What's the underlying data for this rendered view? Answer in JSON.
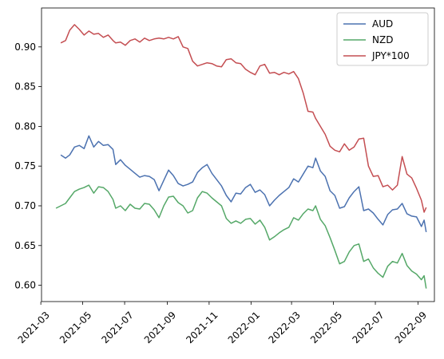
{
  "chart_data": {
    "type": "line",
    "title": "",
    "xlabel": "",
    "ylabel": "",
    "x_range": [
      "2021-03-02",
      "2022-09-25"
    ],
    "ylim": [
      0.5795,
      0.949
    ],
    "grid": false,
    "legend_position": "top-right",
    "x_ticks": [
      {
        "date": "2021-03-01",
        "label": "2021-03"
      },
      {
        "date": "2021-05-01",
        "label": "2021-05"
      },
      {
        "date": "2021-07-01",
        "label": "2021-07"
      },
      {
        "date": "2021-09-01",
        "label": "2021-09"
      },
      {
        "date": "2021-11-01",
        "label": "2021-11"
      },
      {
        "date": "2022-01-01",
        "label": "2022-01"
      },
      {
        "date": "2022-03-01",
        "label": "2022-03"
      },
      {
        "date": "2022-05-01",
        "label": "2022-05"
      },
      {
        "date": "2022-07-01",
        "label": "2022-07"
      },
      {
        "date": "2022-09-01",
        "label": "2022-09"
      }
    ],
    "y_ticks": [
      {
        "value": 0.6,
        "label": "0.60"
      },
      {
        "value": 0.65,
        "label": "0.65"
      },
      {
        "value": 0.7,
        "label": "0.70"
      },
      {
        "value": 0.75,
        "label": "0.75"
      },
      {
        "value": 0.8,
        "label": "0.80"
      },
      {
        "value": 0.85,
        "label": "0.85"
      },
      {
        "value": 0.9,
        "label": "0.90"
      }
    ],
    "series": [
      {
        "name": "AUD",
        "color": "#4c72b0",
        "points": [
          [
            "2021-03-30",
            0.764
          ],
          [
            "2021-04-06",
            0.76
          ],
          [
            "2021-04-12",
            0.764
          ],
          [
            "2021-04-19",
            0.774
          ],
          [
            "2021-04-26",
            0.776
          ],
          [
            "2021-05-03",
            0.772
          ],
          [
            "2021-05-10",
            0.788
          ],
          [
            "2021-05-17",
            0.774
          ],
          [
            "2021-05-24",
            0.781
          ],
          [
            "2021-05-31",
            0.776
          ],
          [
            "2021-06-07",
            0.777
          ],
          [
            "2021-06-14",
            0.771
          ],
          [
            "2021-06-18",
            0.752
          ],
          [
            "2021-06-25",
            0.758
          ],
          [
            "2021-07-02",
            0.751
          ],
          [
            "2021-07-09",
            0.746
          ],
          [
            "2021-07-16",
            0.741
          ],
          [
            "2021-07-23",
            0.736
          ],
          [
            "2021-07-30",
            0.738
          ],
          [
            "2021-08-06",
            0.737
          ],
          [
            "2021-08-13",
            0.733
          ],
          [
            "2021-08-20",
            0.719
          ],
          [
            "2021-08-27",
            0.732
          ],
          [
            "2021-09-03",
            0.745
          ],
          [
            "2021-09-10",
            0.738
          ],
          [
            "2021-09-17",
            0.728
          ],
          [
            "2021-09-24",
            0.725
          ],
          [
            "2021-10-01",
            0.727
          ],
          [
            "2021-10-08",
            0.73
          ],
          [
            "2021-10-15",
            0.742
          ],
          [
            "2021-10-22",
            0.748
          ],
          [
            "2021-10-29",
            0.752
          ],
          [
            "2021-11-05",
            0.741
          ],
          [
            "2021-11-12",
            0.733
          ],
          [
            "2021-11-19",
            0.725
          ],
          [
            "2021-11-26",
            0.713
          ],
          [
            "2021-12-03",
            0.705
          ],
          [
            "2021-12-10",
            0.716
          ],
          [
            "2021-12-17",
            0.715
          ],
          [
            "2021-12-24",
            0.723
          ],
          [
            "2021-12-31",
            0.727
          ],
          [
            "2022-01-07",
            0.717
          ],
          [
            "2022-01-14",
            0.72
          ],
          [
            "2022-01-21",
            0.714
          ],
          [
            "2022-01-28",
            0.7
          ],
          [
            "2022-02-04",
            0.707
          ],
          [
            "2022-02-11",
            0.713
          ],
          [
            "2022-02-18",
            0.718
          ],
          [
            "2022-02-25",
            0.723
          ],
          [
            "2022-03-04",
            0.734
          ],
          [
            "2022-03-11",
            0.73
          ],
          [
            "2022-03-18",
            0.74
          ],
          [
            "2022-03-25",
            0.75
          ],
          [
            "2022-04-01",
            0.748
          ],
          [
            "2022-04-05",
            0.76
          ],
          [
            "2022-04-12",
            0.744
          ],
          [
            "2022-04-19",
            0.737
          ],
          [
            "2022-04-26",
            0.719
          ],
          [
            "2022-05-03",
            0.713
          ],
          [
            "2022-05-10",
            0.697
          ],
          [
            "2022-05-17",
            0.699
          ],
          [
            "2022-05-24",
            0.71
          ],
          [
            "2022-05-31",
            0.718
          ],
          [
            "2022-06-07",
            0.724
          ],
          [
            "2022-06-14",
            0.694
          ],
          [
            "2022-06-21",
            0.696
          ],
          [
            "2022-06-28",
            0.691
          ],
          [
            "2022-07-05",
            0.683
          ],
          [
            "2022-07-12",
            0.676
          ],
          [
            "2022-07-19",
            0.689
          ],
          [
            "2022-07-26",
            0.695
          ],
          [
            "2022-08-02",
            0.696
          ],
          [
            "2022-08-09",
            0.703
          ],
          [
            "2022-08-16",
            0.69
          ],
          [
            "2022-08-23",
            0.687
          ],
          [
            "2022-08-30",
            0.686
          ],
          [
            "2022-09-06",
            0.674
          ],
          [
            "2022-09-10",
            0.682
          ],
          [
            "2022-09-13",
            0.667
          ]
        ]
      },
      {
        "name": "NZD",
        "color": "#55a868",
        "points": [
          [
            "2021-03-23",
            0.697
          ],
          [
            "2021-03-30",
            0.7
          ],
          [
            "2021-04-06",
            0.703
          ],
          [
            "2021-04-12",
            0.71
          ],
          [
            "2021-04-19",
            0.718
          ],
          [
            "2021-04-26",
            0.721
          ],
          [
            "2021-05-03",
            0.723
          ],
          [
            "2021-05-10",
            0.726
          ],
          [
            "2021-05-17",
            0.716
          ],
          [
            "2021-05-24",
            0.724
          ],
          [
            "2021-05-31",
            0.723
          ],
          [
            "2021-06-07",
            0.718
          ],
          [
            "2021-06-14",
            0.708
          ],
          [
            "2021-06-18",
            0.697
          ],
          [
            "2021-06-25",
            0.7
          ],
          [
            "2021-07-02",
            0.694
          ],
          [
            "2021-07-09",
            0.702
          ],
          [
            "2021-07-16",
            0.697
          ],
          [
            "2021-07-23",
            0.696
          ],
          [
            "2021-07-30",
            0.703
          ],
          [
            "2021-08-06",
            0.702
          ],
          [
            "2021-08-13",
            0.695
          ],
          [
            "2021-08-20",
            0.685
          ],
          [
            "2021-08-27",
            0.7
          ],
          [
            "2021-09-03",
            0.711
          ],
          [
            "2021-09-10",
            0.712
          ],
          [
            "2021-09-17",
            0.704
          ],
          [
            "2021-09-24",
            0.7
          ],
          [
            "2021-10-01",
            0.691
          ],
          [
            "2021-10-08",
            0.694
          ],
          [
            "2021-10-15",
            0.71
          ],
          [
            "2021-10-22",
            0.718
          ],
          [
            "2021-10-29",
            0.716
          ],
          [
            "2021-11-05",
            0.71
          ],
          [
            "2021-11-12",
            0.705
          ],
          [
            "2021-11-19",
            0.7
          ],
          [
            "2021-11-26",
            0.684
          ],
          [
            "2021-12-03",
            0.678
          ],
          [
            "2021-12-10",
            0.681
          ],
          [
            "2021-12-17",
            0.678
          ],
          [
            "2021-12-24",
            0.683
          ],
          [
            "2021-12-31",
            0.684
          ],
          [
            "2022-01-07",
            0.677
          ],
          [
            "2022-01-14",
            0.682
          ],
          [
            "2022-01-21",
            0.673
          ],
          [
            "2022-01-28",
            0.657
          ],
          [
            "2022-02-04",
            0.661
          ],
          [
            "2022-02-11",
            0.666
          ],
          [
            "2022-02-18",
            0.67
          ],
          [
            "2022-02-25",
            0.673
          ],
          [
            "2022-03-04",
            0.685
          ],
          [
            "2022-03-11",
            0.682
          ],
          [
            "2022-03-18",
            0.69
          ],
          [
            "2022-03-25",
            0.696
          ],
          [
            "2022-04-01",
            0.694
          ],
          [
            "2022-04-05",
            0.7
          ],
          [
            "2022-04-12",
            0.683
          ],
          [
            "2022-04-19",
            0.675
          ],
          [
            "2022-04-26",
            0.66
          ],
          [
            "2022-05-03",
            0.644
          ],
          [
            "2022-05-10",
            0.627
          ],
          [
            "2022-05-17",
            0.63
          ],
          [
            "2022-05-24",
            0.642
          ],
          [
            "2022-05-31",
            0.65
          ],
          [
            "2022-06-07",
            0.652
          ],
          [
            "2022-06-14",
            0.63
          ],
          [
            "2022-06-21",
            0.633
          ],
          [
            "2022-06-28",
            0.622
          ],
          [
            "2022-07-05",
            0.615
          ],
          [
            "2022-07-12",
            0.61
          ],
          [
            "2022-07-19",
            0.624
          ],
          [
            "2022-07-26",
            0.63
          ],
          [
            "2022-08-02",
            0.628
          ],
          [
            "2022-08-09",
            0.64
          ],
          [
            "2022-08-16",
            0.625
          ],
          [
            "2022-08-23",
            0.618
          ],
          [
            "2022-08-30",
            0.614
          ],
          [
            "2022-09-06",
            0.607
          ],
          [
            "2022-09-10",
            0.612
          ],
          [
            "2022-09-13",
            0.596
          ]
        ]
      },
      {
        "name": "JPY*100",
        "color": "#c44e52",
        "points": [
          [
            "2021-03-30",
            0.905
          ],
          [
            "2021-04-06",
            0.908
          ],
          [
            "2021-04-12",
            0.921
          ],
          [
            "2021-04-19",
            0.928
          ],
          [
            "2021-04-26",
            0.922
          ],
          [
            "2021-05-03",
            0.915
          ],
          [
            "2021-05-10",
            0.92
          ],
          [
            "2021-05-17",
            0.916
          ],
          [
            "2021-05-24",
            0.917
          ],
          [
            "2021-05-31",
            0.912
          ],
          [
            "2021-06-07",
            0.915
          ],
          [
            "2021-06-14",
            0.908
          ],
          [
            "2021-06-18",
            0.905
          ],
          [
            "2021-06-25",
            0.906
          ],
          [
            "2021-07-02",
            0.902
          ],
          [
            "2021-07-09",
            0.908
          ],
          [
            "2021-07-16",
            0.91
          ],
          [
            "2021-07-23",
            0.906
          ],
          [
            "2021-07-30",
            0.911
          ],
          [
            "2021-08-06",
            0.908
          ],
          [
            "2021-08-13",
            0.91
          ],
          [
            "2021-08-20",
            0.911
          ],
          [
            "2021-08-27",
            0.91
          ],
          [
            "2021-09-03",
            0.912
          ],
          [
            "2021-09-10",
            0.91
          ],
          [
            "2021-09-17",
            0.913
          ],
          [
            "2021-09-24",
            0.9
          ],
          [
            "2021-10-01",
            0.898
          ],
          [
            "2021-10-08",
            0.882
          ],
          [
            "2021-10-15",
            0.876
          ],
          [
            "2021-10-22",
            0.878
          ],
          [
            "2021-10-29",
            0.88
          ],
          [
            "2021-11-05",
            0.879
          ],
          [
            "2021-11-12",
            0.876
          ],
          [
            "2021-11-19",
            0.875
          ],
          [
            "2021-11-26",
            0.884
          ],
          [
            "2021-12-03",
            0.885
          ],
          [
            "2021-12-10",
            0.88
          ],
          [
            "2021-12-17",
            0.879
          ],
          [
            "2021-12-24",
            0.872
          ],
          [
            "2021-12-31",
            0.868
          ],
          [
            "2022-01-07",
            0.865
          ],
          [
            "2022-01-14",
            0.876
          ],
          [
            "2022-01-21",
            0.878
          ],
          [
            "2022-01-28",
            0.867
          ],
          [
            "2022-02-04",
            0.868
          ],
          [
            "2022-02-11",
            0.865
          ],
          [
            "2022-02-18",
            0.868
          ],
          [
            "2022-02-25",
            0.866
          ],
          [
            "2022-03-04",
            0.869
          ],
          [
            "2022-03-11",
            0.86
          ],
          [
            "2022-03-18",
            0.842
          ],
          [
            "2022-03-25",
            0.819
          ],
          [
            "2022-04-01",
            0.818
          ],
          [
            "2022-04-05",
            0.81
          ],
          [
            "2022-04-12",
            0.8
          ],
          [
            "2022-04-19",
            0.79
          ],
          [
            "2022-04-26",
            0.775
          ],
          [
            "2022-05-03",
            0.77
          ],
          [
            "2022-05-10",
            0.768
          ],
          [
            "2022-05-17",
            0.778
          ],
          [
            "2022-05-24",
            0.77
          ],
          [
            "2022-05-31",
            0.774
          ],
          [
            "2022-06-07",
            0.784
          ],
          [
            "2022-06-14",
            0.785
          ],
          [
            "2022-06-21",
            0.75
          ],
          [
            "2022-06-28",
            0.737
          ],
          [
            "2022-07-05",
            0.738
          ],
          [
            "2022-07-12",
            0.724
          ],
          [
            "2022-07-19",
            0.726
          ],
          [
            "2022-07-26",
            0.72
          ],
          [
            "2022-08-02",
            0.726
          ],
          [
            "2022-08-09",
            0.762
          ],
          [
            "2022-08-16",
            0.74
          ],
          [
            "2022-08-23",
            0.735
          ],
          [
            "2022-08-30",
            0.722
          ],
          [
            "2022-09-06",
            0.707
          ],
          [
            "2022-09-10",
            0.692
          ],
          [
            "2022-09-13",
            0.698
          ]
        ]
      }
    ]
  }
}
